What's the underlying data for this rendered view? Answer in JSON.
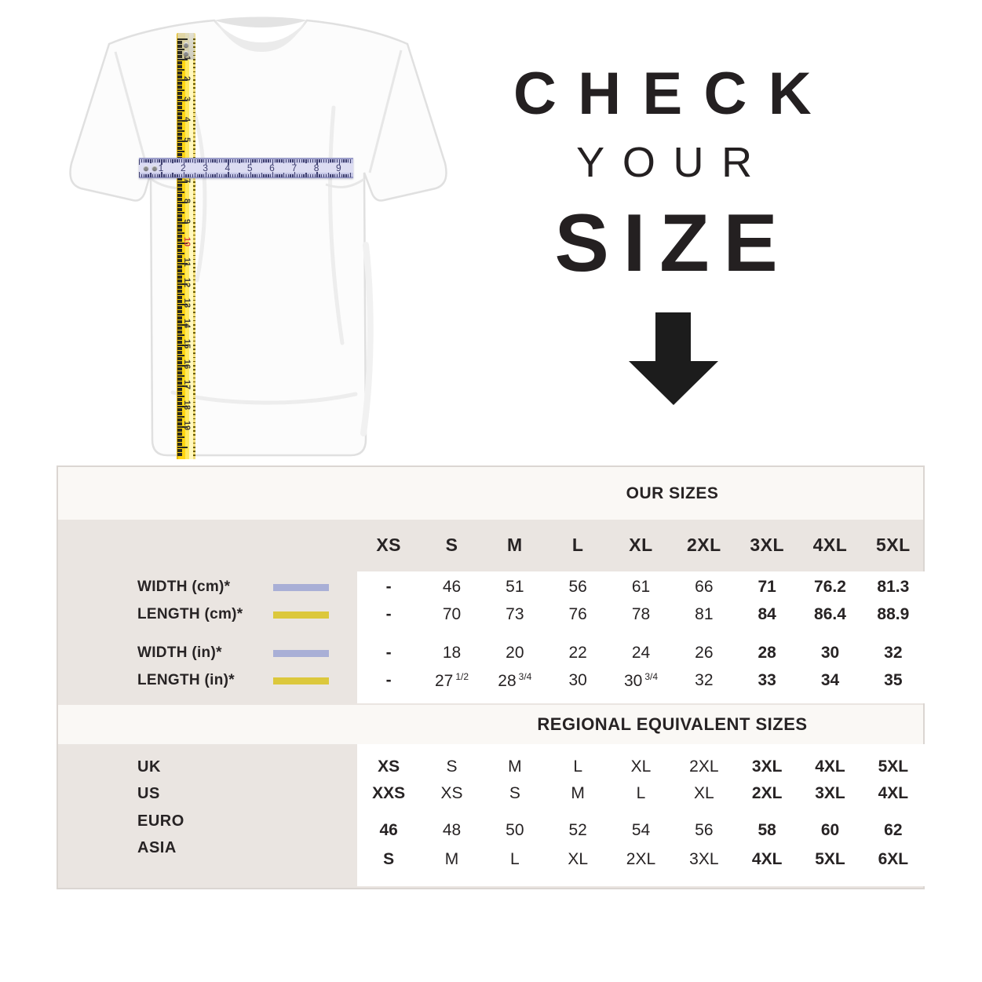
{
  "headline": {
    "line1": "CHECK",
    "line2": "YOUR",
    "line3": "SIZE"
  },
  "tape_measures": {
    "vertical_numbers": [
      "1",
      "2",
      "3",
      "4",
      "5",
      "6",
      "7",
      "8",
      "9",
      "10",
      "11",
      "12",
      "13",
      "14",
      "15",
      "16",
      "17",
      "18",
      "19"
    ],
    "vertical_red_number": "10",
    "horizontal_numbers": [
      "1",
      "2",
      "3",
      "4",
      "5",
      "6",
      "7",
      "8",
      "9"
    ]
  },
  "chart_data": {
    "type": "table",
    "tables": [
      {
        "title": "OUR SIZES",
        "columns": [
          "XS",
          "S",
          "M",
          "L",
          "XL",
          "2XL",
          "3XL",
          "4XL",
          "5XL"
        ],
        "rows": [
          {
            "label": "WIDTH (cm)*",
            "swatch": "lavender",
            "values": [
              "-",
              "46",
              "51",
              "56",
              "61",
              "66",
              "71",
              "76.2",
              "81.3"
            ],
            "bold_cols": [
              6,
              7,
              8
            ]
          },
          {
            "label": "LENGTH (cm)*",
            "swatch": "yellow",
            "values": [
              "-",
              "70",
              "73",
              "76",
              "78",
              "81",
              "84",
              "86.4",
              "88.9"
            ],
            "bold_cols": [
              6,
              7,
              8
            ]
          },
          {
            "label": "WIDTH (in)*",
            "swatch": "lavender",
            "values": [
              "-",
              "18",
              "20",
              "22",
              "24",
              "26",
              "28",
              "30",
              "32"
            ],
            "bold_cols": [
              6,
              7,
              8
            ]
          },
          {
            "label": "LENGTH (in)*",
            "swatch": "yellow",
            "values": [
              "-",
              {
                "v": "27",
                "sup": "1/2"
              },
              {
                "v": "28",
                "sup": "3/4"
              },
              "30",
              {
                "v": "30",
                "sup": "3/4"
              },
              "32",
              "33",
              "34",
              "35"
            ],
            "bold_cols": [
              6,
              7,
              8
            ]
          }
        ]
      },
      {
        "title": "REGIONAL EQUIVALENT SIZES",
        "rows": [
          {
            "label": "UK",
            "values": [
              "XS",
              "S",
              "M",
              "L",
              "XL",
              "2XL",
              "3XL",
              "4XL",
              "5XL"
            ],
            "bold_cols": [
              0,
              6,
              7,
              8
            ]
          },
          {
            "label": "US",
            "values": [
              "XXS",
              "XS",
              "S",
              "M",
              "L",
              "XL",
              "2XL",
              "3XL",
              "4XL"
            ],
            "bold_cols": [
              0,
              6,
              7,
              8
            ]
          },
          {
            "label": "EURO",
            "values": [
              "46",
              "48",
              "50",
              "52",
              "54",
              "56",
              "58",
              "60",
              "62"
            ],
            "bold_cols": [
              0,
              6,
              7,
              8
            ]
          },
          {
            "label": "ASIA",
            "values": [
              "S",
              "M",
              "L",
              "XL",
              "2XL",
              "3XL",
              "4XL",
              "5XL",
              "6XL"
            ],
            "bold_cols": [
              0,
              6,
              7,
              8
            ]
          }
        ]
      }
    ]
  },
  "colors": {
    "lavender": "#a9afd6",
    "yellow": "#dcc83c",
    "table_bg": "#eae5e1",
    "band_bg": "#faf8f5",
    "tape_yellow": "#ffd612",
    "tape_lavender": "#c5c6e6",
    "text": "#272324",
    "red_number": "#d04040"
  }
}
